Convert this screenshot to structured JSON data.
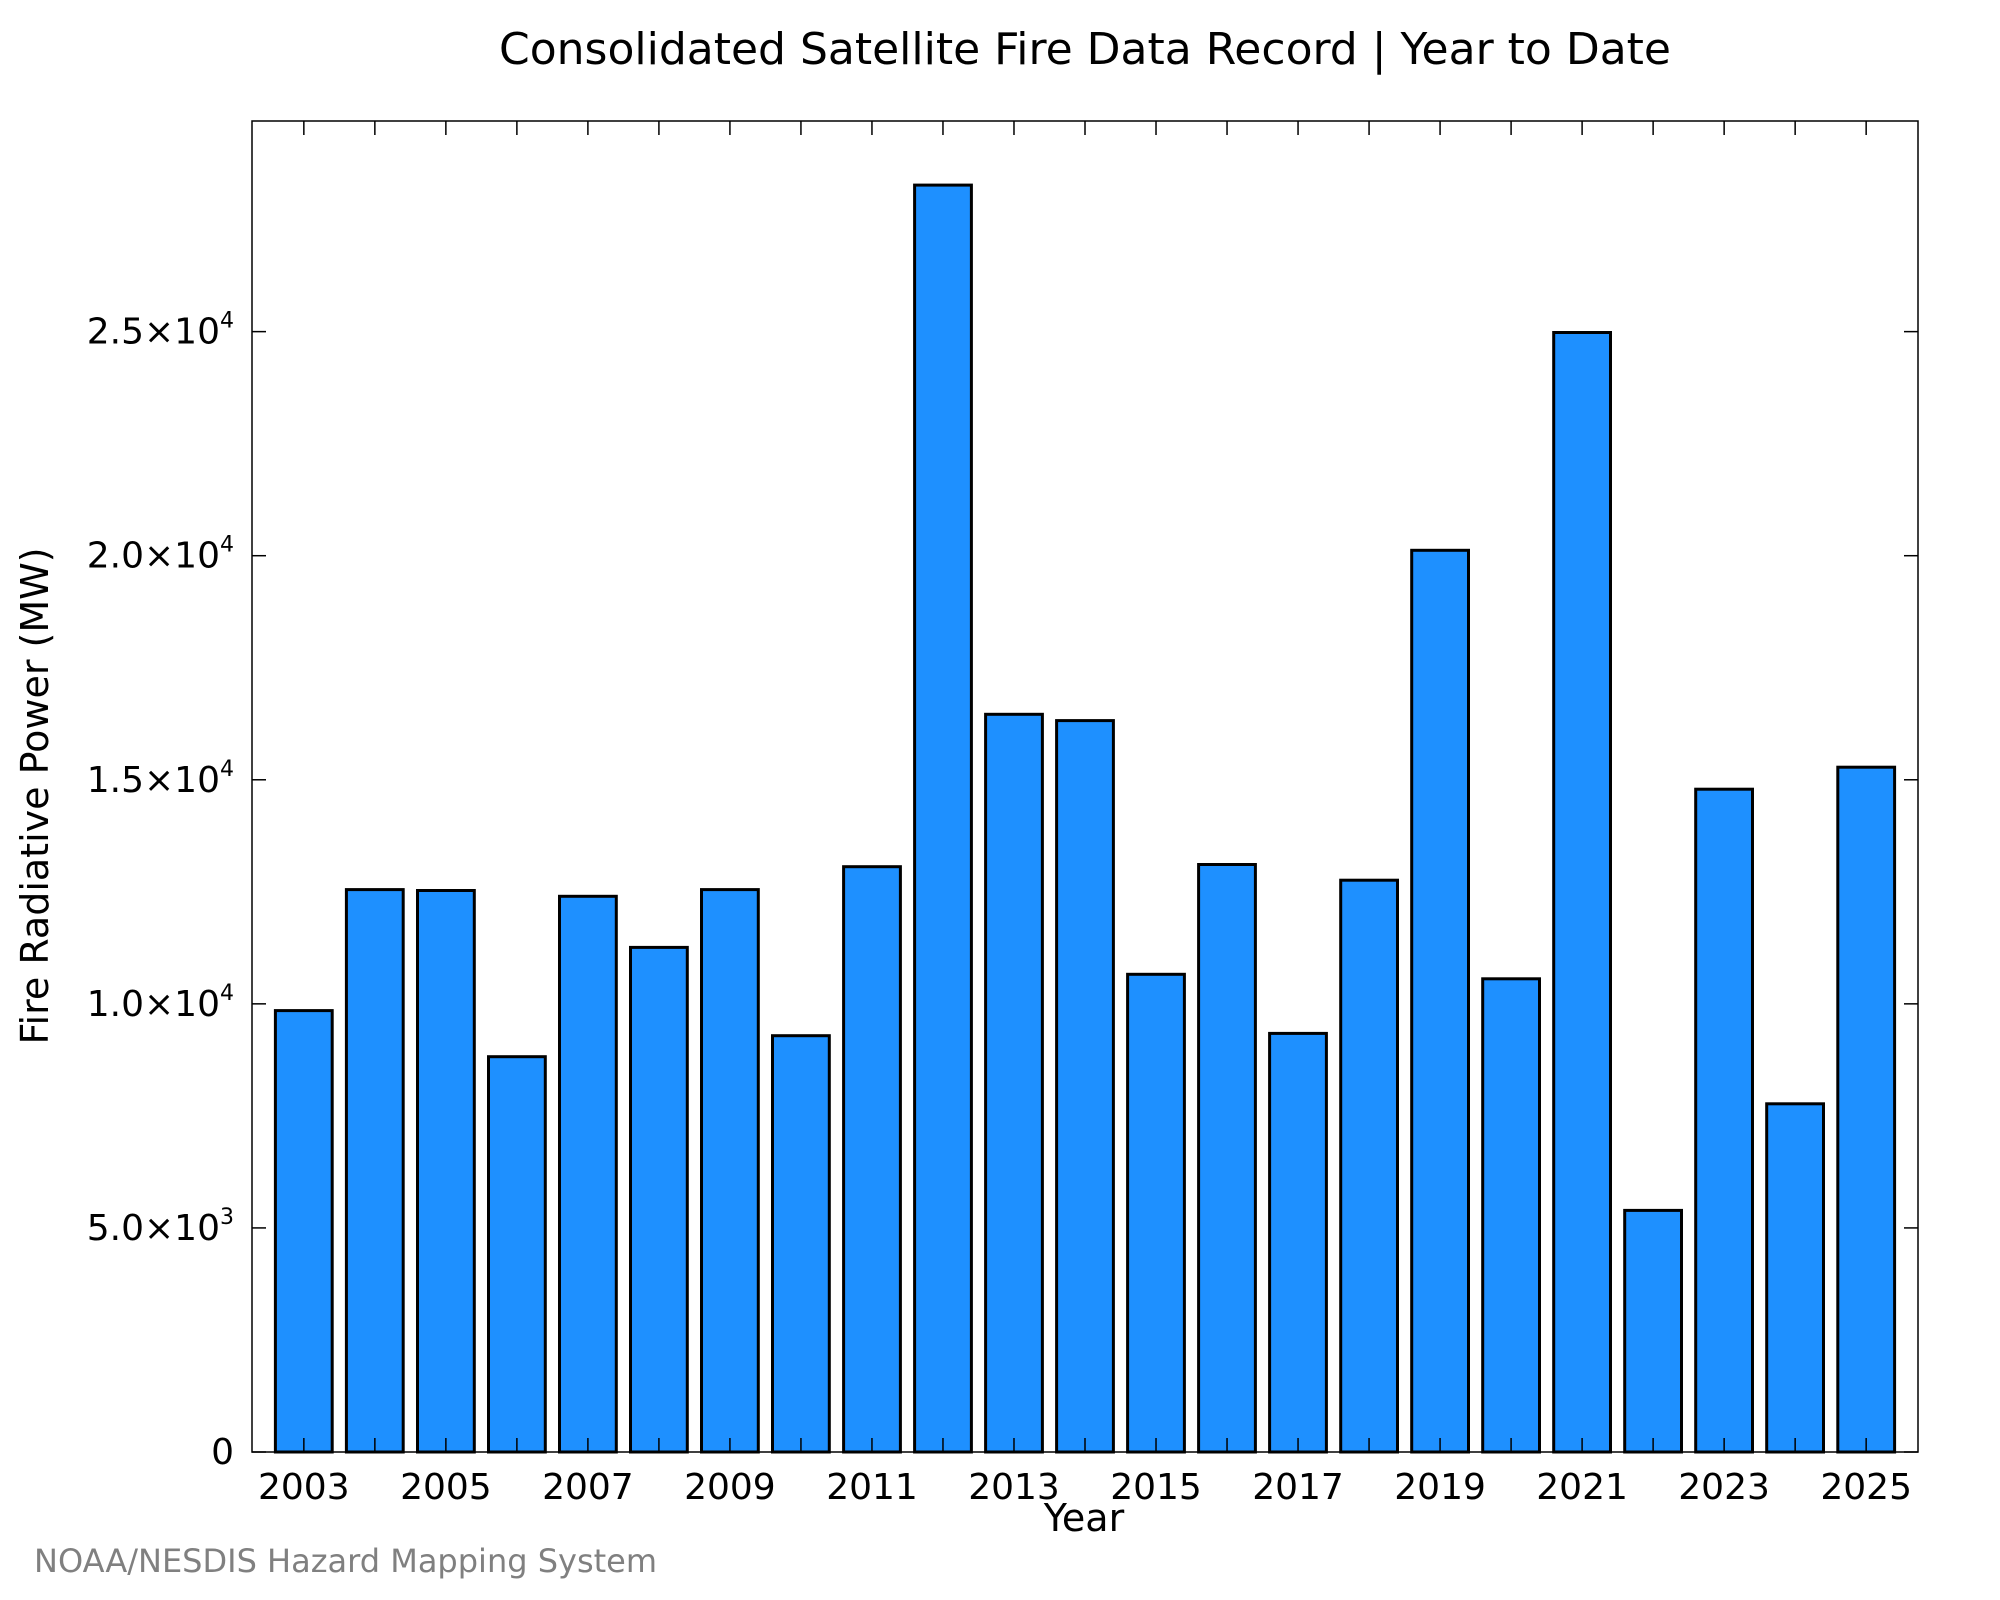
{
  "credit": "NOAA/NESDIS Hazard Mapping System",
  "colors": {
    "bar": "#1e90ff",
    "bar_edge": "#000000",
    "credit": "#808080"
  },
  "chart_data": {
    "type": "bar",
    "title": "Consolidated Satellite Fire Data Record | Year to Date",
    "xlabel": "Year",
    "ylabel": "Fire Radiative Power (MW)",
    "ylim": [
      0,
      29700
    ],
    "grid": false,
    "categories": [
      "2003",
      "2004",
      "2005",
      "2006",
      "2007",
      "2008",
      "2009",
      "2010",
      "2011",
      "2012",
      "2013",
      "2014",
      "2015",
      "2016",
      "2017",
      "2018",
      "2019",
      "2020",
      "2021",
      "2022",
      "2023",
      "2024",
      "2025"
    ],
    "values": [
      9850,
      12550,
      12530,
      8820,
      12400,
      11260,
      12550,
      9290,
      13060,
      28270,
      16460,
      16320,
      10660,
      13110,
      9340,
      12760,
      20120,
      10560,
      24980,
      5390,
      14790,
      7770,
      15280
    ],
    "y_ticks": [
      {
        "value": 0,
        "mantissa": "0",
        "exponent": ""
      },
      {
        "value": 5000,
        "mantissa": "5.0×10",
        "exponent": "3"
      },
      {
        "value": 10000,
        "mantissa": "1.0×10",
        "exponent": "4"
      },
      {
        "value": 15000,
        "mantissa": "1.5×10",
        "exponent": "4"
      },
      {
        "value": 20000,
        "mantissa": "2.0×10",
        "exponent": "4"
      },
      {
        "value": 25000,
        "mantissa": "2.5×10",
        "exponent": "4"
      }
    ],
    "x_tick_labels": [
      "2003",
      "2005",
      "2007",
      "2009",
      "2011",
      "2013",
      "2015",
      "2017",
      "2019",
      "2021",
      "2023",
      "2025"
    ]
  }
}
